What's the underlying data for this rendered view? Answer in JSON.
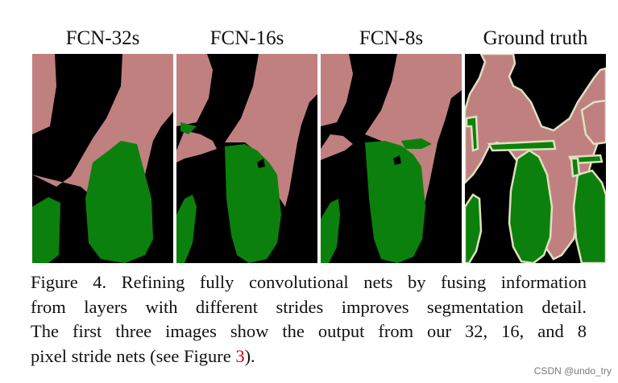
{
  "figure": {
    "panels": [
      {
        "title": "FCN-32s"
      },
      {
        "title": "FCN-16s"
      },
      {
        "title": "FCN-8s"
      },
      {
        "title": "Ground truth"
      }
    ],
    "colors": {
      "background": "#000000",
      "person": "#c08080",
      "bicycle": "#0c800c",
      "boundary": "#e0e0c0"
    },
    "caption": {
      "lines": [
        "Figure 4.  Refining fully convolutional nets by fusing information",
        "from layers with different strides improves segmentation detail.",
        "The first three images show the output from our 32, 16, and 8"
      ],
      "last_line_before": "pixel stride nets (see Figure ",
      "figure_ref": "3",
      "last_line_after": ")."
    }
  },
  "watermark": "CSDN @undo_try"
}
